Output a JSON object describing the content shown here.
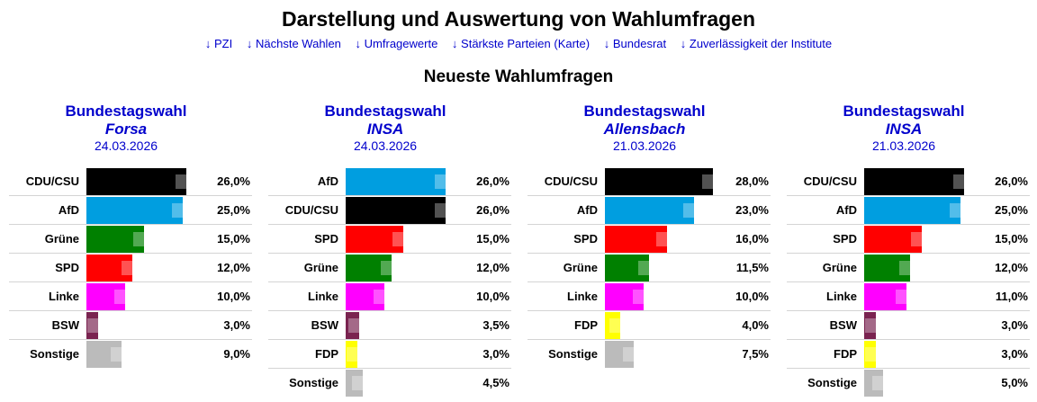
{
  "title": "Darstellung und Auswertung von Wahlumfragen",
  "nav": [
    {
      "arrow": "↓",
      "label": "PZI"
    },
    {
      "arrow": "↓",
      "label": "Nächste Wahlen"
    },
    {
      "arrow": "↓",
      "label": "Umfragewerte"
    },
    {
      "arrow": "↓",
      "label": "Stärkste Parteien (Karte)"
    },
    {
      "arrow": "↓",
      "label": "Bundesrat"
    },
    {
      "arrow": "↓",
      "label": "Zuverlässigkeit der Institute"
    }
  ],
  "section_title": "Neueste Wahlumfragen",
  "colors": {
    "CDU/CSU": "#000000",
    "AfD": "#009ee0",
    "Grüne": "#008000",
    "SPD": "#ff0000",
    "Linke": "#ff00ff",
    "BSW": "#7a2350",
    "FDP": "#ffff00",
    "Sonstige": "#bbbbbb"
  },
  "polls": [
    {
      "election": "Bundestagswahl",
      "institute": "Forsa",
      "date": "24.03.2026",
      "rows": [
        {
          "party": "CDU/CSU",
          "value": 26.0,
          "label": "26,0%"
        },
        {
          "party": "AfD",
          "value": 25.0,
          "label": "25,0%"
        },
        {
          "party": "Grüne",
          "value": 15.0,
          "label": "15,0%"
        },
        {
          "party": "SPD",
          "value": 12.0,
          "label": "12,0%"
        },
        {
          "party": "Linke",
          "value": 10.0,
          "label": "10,0%"
        },
        {
          "party": "BSW",
          "value": 3.0,
          "label": "3,0%"
        },
        {
          "party": "Sonstige",
          "value": 9.0,
          "label": "9,0%"
        }
      ]
    },
    {
      "election": "Bundestagswahl",
      "institute": "INSA",
      "date": "24.03.2026",
      "rows": [
        {
          "party": "AfD",
          "value": 26.0,
          "label": "26,0%"
        },
        {
          "party": "CDU/CSU",
          "value": 26.0,
          "label": "26,0%"
        },
        {
          "party": "SPD",
          "value": 15.0,
          "label": "15,0%"
        },
        {
          "party": "Grüne",
          "value": 12.0,
          "label": "12,0%"
        },
        {
          "party": "Linke",
          "value": 10.0,
          "label": "10,0%"
        },
        {
          "party": "BSW",
          "value": 3.5,
          "label": "3,5%"
        },
        {
          "party": "FDP",
          "value": 3.0,
          "label": "3,0%"
        },
        {
          "party": "Sonstige",
          "value": 4.5,
          "label": "4,5%"
        }
      ]
    },
    {
      "election": "Bundestagswahl",
      "institute": "Allensbach",
      "date": "21.03.2026",
      "rows": [
        {
          "party": "CDU/CSU",
          "value": 28.0,
          "label": "28,0%"
        },
        {
          "party": "AfD",
          "value": 23.0,
          "label": "23,0%"
        },
        {
          "party": "SPD",
          "value": 16.0,
          "label": "16,0%"
        },
        {
          "party": "Grüne",
          "value": 11.5,
          "label": "11,5%"
        },
        {
          "party": "Linke",
          "value": 10.0,
          "label": "10,0%"
        },
        {
          "party": "FDP",
          "value": 4.0,
          "label": "4,0%"
        },
        {
          "party": "Sonstige",
          "value": 7.5,
          "label": "7,5%"
        }
      ]
    },
    {
      "election": "Bundestagswahl",
      "institute": "INSA",
      "date": "21.03.2026",
      "rows": [
        {
          "party": "CDU/CSU",
          "value": 26.0,
          "label": "26,0%"
        },
        {
          "party": "AfD",
          "value": 25.0,
          "label": "25,0%"
        },
        {
          "party": "SPD",
          "value": 15.0,
          "label": "15,0%"
        },
        {
          "party": "Grüne",
          "value": 12.0,
          "label": "12,0%"
        },
        {
          "party": "Linke",
          "value": 11.0,
          "label": "11,0%"
        },
        {
          "party": "BSW",
          "value": 3.0,
          "label": "3,0%"
        },
        {
          "party": "FDP",
          "value": 3.0,
          "label": "3,0%"
        },
        {
          "party": "Sonstige",
          "value": 5.0,
          "label": "5,0%"
        }
      ]
    }
  ]
}
